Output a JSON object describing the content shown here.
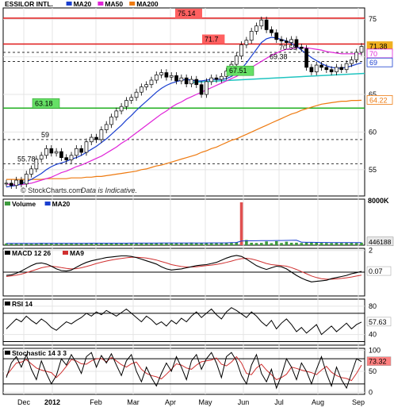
{
  "chart_data": {
    "type": "line",
    "title": "ESSILOR INTL.",
    "watermark": "© StockCharts.com",
    "disclaimer": "Data is Indicative.",
    "x_ticks": [
      "Dec",
      "2012",
      "Feb",
      "Mar",
      "Apr",
      "May",
      "Jun",
      "Jul",
      "Aug",
      "Sep"
    ],
    "colors": {
      "price": "#000000",
      "ma20": "#1a3fd0",
      "ma50": "#e024d8",
      "ma200": "#ee7a10",
      "green_level": "#22b022",
      "teal_trend": "#20c4c0",
      "resistance": "#e01818",
      "volume": "#3c9a3c",
      "macd_signal": "#d03030",
      "red_label": "#ff6060",
      "green_label": "#66e066"
    },
    "panels": [
      {
        "name": "price",
        "ylim": [
          51.5,
          76.5
        ],
        "y_ticks": [
          55,
          60,
          65,
          70,
          75
        ],
        "legend": [
          {
            "label": "ESSILOR INTL.",
            "color": "#000000"
          },
          {
            "label": "MA20",
            "color": "#1a3fd0"
          },
          {
            "label": "MA50",
            "color": "#e024d8"
          },
          {
            "label": "MA200",
            "color": "#ee7a10"
          }
        ],
        "levels": [
          {
            "value": 75.14,
            "label": "75.14",
            "style": "red"
          },
          {
            "value": 71.7,
            "label": "71.7",
            "style": "red"
          },
          {
            "value": 70.59,
            "label": "70.59",
            "style": "dashed"
          },
          {
            "value": 69.38,
            "label": "69.38",
            "style": "dashed"
          },
          {
            "value": 67.51,
            "label": "67.51",
            "style": "green_label"
          },
          {
            "value": 63.18,
            "label": "63.18",
            "style": "green"
          },
          {
            "value": 59,
            "label": "59",
            "style": "dashed"
          },
          {
            "value": 55.78,
            "label": "55.78",
            "style": "dashed"
          }
        ],
        "last_values": [
          {
            "label": "71.38",
            "value": 71.38,
            "color": "#f0b020"
          },
          {
            "label": "70",
            "value": 70.4,
            "color": "#e024d8"
          },
          {
            "label": "69",
            "value": 69.2,
            "color": "#1a3fd0"
          },
          {
            "label": "64.22",
            "value": 64.22,
            "color": "#ee7a10"
          }
        ],
        "price": [
          53.2,
          52.9,
          53.6,
          53.1,
          54.4,
          55.1,
          56.4,
          56.9,
          57.8,
          57.2,
          57.4,
          56.6,
          56.3,
          56.9,
          57.8,
          57.3,
          58.7,
          59.3,
          59.0,
          60.3,
          61.0,
          62.0,
          62.8,
          63.4,
          64.2,
          64.6,
          65.3,
          66.0,
          66.3,
          66.9,
          67.6,
          67.9,
          67.3,
          67.5,
          66.8,
          67.2,
          66.4,
          67.0,
          66.3,
          65.0,
          66.7,
          67.2,
          67.0,
          67.4,
          68.1,
          69.0,
          70.1,
          71.6,
          72.2,
          73.4,
          74.1,
          74.9,
          73.6,
          73.2,
          72.3,
          72.1,
          71.9,
          72.3,
          71.3,
          71.1,
          68.6,
          68.0,
          68.9,
          68.6,
          68.3,
          68.0,
          68.6,
          68.3,
          69.1,
          69.6,
          70.6,
          71.38
        ],
        "ma20": [
          52.7,
          52.8,
          52.9,
          53.1,
          53.4,
          53.7,
          54.1,
          54.5,
          55.0,
          55.4,
          55.7,
          55.9,
          56.1,
          56.4,
          56.6,
          56.9,
          57.3,
          57.7,
          58.1,
          58.6,
          59.1,
          59.7,
          60.3,
          60.9,
          61.6,
          62.2,
          62.9,
          63.5,
          64.1,
          64.7,
          65.3,
          65.8,
          66.2,
          66.5,
          66.7,
          66.9,
          67.0,
          66.9,
          66.8,
          66.8,
          66.9,
          67.0,
          67.0,
          67.0,
          67.1,
          67.4,
          67.8,
          68.4,
          69.2,
          70.1,
          71.0,
          71.9,
          72.4,
          72.6,
          72.5,
          72.3,
          72.1,
          71.8,
          71.4,
          70.9,
          70.4,
          69.9,
          69.5,
          69.1,
          68.8,
          68.6,
          68.5,
          68.5,
          68.6,
          68.8,
          69.0,
          69.2
        ],
        "ma50": [
          53.1,
          53.0,
          53.0,
          53.0,
          53.1,
          53.2,
          53.4,
          53.6,
          53.8,
          54.0,
          54.3,
          54.6,
          54.8,
          55.1,
          55.4,
          55.6,
          55.9,
          56.2,
          56.5,
          56.8,
          57.2,
          57.6,
          58.0,
          58.5,
          58.9,
          59.4,
          59.9,
          60.4,
          60.9,
          61.4,
          61.9,
          62.4,
          62.8,
          63.3,
          63.7,
          64.0,
          64.4,
          64.7,
          65.0,
          65.3,
          65.6,
          65.9,
          66.2,
          66.5,
          66.8,
          67.1,
          67.4,
          67.8,
          68.2,
          68.6,
          69.0,
          69.4,
          69.8,
          70.2,
          70.5,
          70.8,
          71.0,
          71.1,
          71.2,
          71.2,
          71.2,
          71.1,
          71.0,
          70.9,
          70.7,
          70.6,
          70.5,
          70.4,
          70.4,
          70.4,
          70.4,
          70.4
        ],
        "ma200": [
          53.7,
          53.7,
          53.7,
          53.7,
          53.7,
          53.7,
          53.7,
          53.7,
          53.8,
          53.8,
          53.8,
          53.8,
          53.8,
          53.9,
          53.9,
          53.9,
          54.0,
          54.0,
          54.1,
          54.1,
          54.2,
          54.3,
          54.4,
          54.5,
          54.6,
          54.7,
          54.8,
          55.0,
          55.1,
          55.3,
          55.5,
          55.6,
          55.8,
          56.0,
          56.2,
          56.4,
          56.6,
          56.8,
          57.0,
          57.3,
          57.5,
          57.8,
          58.0,
          58.3,
          58.6,
          58.9,
          59.1,
          59.4,
          59.7,
          60.0,
          60.3,
          60.6,
          60.9,
          61.2,
          61.5,
          61.8,
          62.1,
          62.4,
          62.6,
          62.9,
          63.1,
          63.3,
          63.5,
          63.7,
          63.8,
          63.9,
          64.0,
          64.1,
          64.1,
          64.2,
          64.2,
          64.22
        ]
      },
      {
        "name": "volume",
        "ylim": [
          0,
          8000
        ],
        "y_ticks": [],
        "y_tick_labels": [
          {
            "label": "8000K",
            "value": 8000
          }
        ],
        "legend": [
          {
            "label": "Volume",
            "color": "#3c9a3c"
          },
          {
            "label": "MA20",
            "color": "#1a3fd0"
          }
        ],
        "last_values": [
          {
            "label": "446188",
            "value": 446,
            "color": "#e8e8e8"
          }
        ],
        "values": [
          310,
          290,
          330,
          280,
          350,
          320,
          300,
          410,
          360,
          340,
          300,
          290,
          330,
          360,
          310,
          340,
          380,
          300,
          320,
          370,
          350,
          330,
          360,
          340,
          390,
          360,
          400,
          380,
          350,
          370,
          420,
          390,
          360,
          340,
          410,
          380,
          350,
          450,
          400,
          370,
          430,
          380,
          400,
          360,
          440,
          470,
          510,
          7450,
          900,
          420,
          380,
          390,
          650,
          350,
          700,
          380,
          600,
          420,
          430,
          380,
          460,
          520,
          440,
          400,
          380,
          370,
          430,
          390,
          400,
          410,
          380,
          446
        ],
        "ma20": [
          320,
          320,
          320,
          320,
          320,
          320,
          320,
          325,
          325,
          330,
          330,
          330,
          330,
          330,
          335,
          335,
          335,
          340,
          340,
          340,
          345,
          345,
          345,
          350,
          350,
          355,
          355,
          360,
          360,
          365,
          365,
          370,
          370,
          375,
          375,
          380,
          380,
          385,
          385,
          390,
          390,
          395,
          395,
          400,
          400,
          440,
          470,
          720,
          760,
          760,
          770,
          780,
          800,
          800,
          820,
          820,
          830,
          840,
          860,
          520,
          500,
          490,
          480,
          470,
          470,
          460,
          455,
          450,
          450,
          448,
          447,
          446
        ]
      },
      {
        "name": "macd",
        "ylim": [
          -2.2,
          2.2
        ],
        "y_ticks": [
          2,
          0
        ],
        "zero": 0,
        "legend": [
          {
            "label": "MACD 12 26",
            "color": "#000000"
          },
          {
            "label": "MA9",
            "color": "#d03030"
          }
        ],
        "last_values": [
          {
            "label": "0.07",
            "value": 0.07,
            "color": "#ffffff"
          }
        ],
        "macd": [
          -0.3,
          -0.25,
          -0.1,
          0.1,
          0.35,
          0.6,
          0.8,
          0.85,
          0.75,
          0.55,
          0.3,
          0.15,
          0.1,
          0.2,
          0.45,
          0.7,
          0.9,
          1.05,
          1.15,
          1.25,
          1.35,
          1.4,
          1.45,
          1.5,
          1.5,
          1.45,
          1.35,
          1.2,
          1.05,
          0.9,
          0.75,
          0.5,
          0.3,
          0.2,
          0.25,
          0.3,
          0.4,
          0.5,
          0.6,
          0.65,
          0.7,
          0.8,
          0.9,
          1.1,
          1.3,
          1.45,
          1.55,
          1.45,
          1.2,
          0.9,
          0.6,
          0.4,
          0.25,
          0.4,
          0.55,
          0.5,
          0.3,
          0.0,
          -0.3,
          -0.55,
          -0.75,
          -0.9,
          -0.85,
          -0.8,
          -0.75,
          -0.6,
          -0.5,
          -0.4,
          -0.3,
          -0.15,
          -0.05,
          0.07
        ],
        "signal": [
          -0.4,
          -0.35,
          -0.28,
          -0.18,
          -0.05,
          0.1,
          0.25,
          0.4,
          0.5,
          0.55,
          0.5,
          0.42,
          0.35,
          0.3,
          0.32,
          0.4,
          0.52,
          0.65,
          0.8,
          0.92,
          1.03,
          1.12,
          1.2,
          1.27,
          1.33,
          1.37,
          1.38,
          1.35,
          1.3,
          1.22,
          1.12,
          0.98,
          0.85,
          0.7,
          0.6,
          0.52,
          0.48,
          0.48,
          0.5,
          0.55,
          0.6,
          0.65,
          0.72,
          0.8,
          0.9,
          1.02,
          1.15,
          1.25,
          1.28,
          1.22,
          1.1,
          0.95,
          0.8,
          0.7,
          0.65,
          0.6,
          0.55,
          0.42,
          0.25,
          0.05,
          -0.15,
          -0.35,
          -0.5,
          -0.6,
          -0.65,
          -0.65,
          -0.62,
          -0.58,
          -0.52,
          -0.45,
          -0.36,
          -0.27
        ]
      },
      {
        "name": "rsi",
        "ylim": [
          25,
          90
        ],
        "y_ticks": [
          80,
          40
        ],
        "guides": [
          70,
          30
        ],
        "legend": [
          {
            "label": "RSI 14",
            "color": "#000000"
          }
        ],
        "last_values": [
          {
            "label": "57.63",
            "value": 57.63,
            "color": "#ffffff"
          }
        ],
        "values": [
          48,
          55,
          62,
          58,
          66,
          60,
          55,
          62,
          57,
          50,
          46,
          52,
          58,
          55,
          60,
          64,
          70,
          66,
          72,
          68,
          74,
          70,
          66,
          71,
          76,
          70,
          64,
          58,
          66,
          61,
          54,
          58,
          52,
          60,
          55,
          63,
          58,
          66,
          72,
          64,
          70,
          76,
          68,
          62,
          72,
          78,
          74,
          69,
          64,
          72,
          66,
          58,
          52,
          60,
          48,
          56,
          62,
          54,
          44,
          50,
          42,
          48,
          54,
          40,
          46,
          52,
          44,
          50,
          56,
          48,
          54,
          57.63
        ]
      },
      {
        "name": "stochastic",
        "ylim": [
          -5,
          105
        ],
        "y_ticks": [
          100,
          50,
          0
        ],
        "guides": [
          80,
          20
        ],
        "legend": [
          {
            "label": "Stochastic 14 3 3",
            "color": "#000000"
          }
        ],
        "last_values": [
          {
            "label": "73.32",
            "value": 73.32,
            "color": "#ff8080"
          }
        ],
        "k": [
          35,
          70,
          85,
          60,
          90,
          55,
          30,
          75,
          45,
          20,
          40,
          80,
          65,
          90,
          70,
          45,
          85,
          95,
          60,
          88,
          70,
          92,
          65,
          40,
          75,
          90,
          50,
          25,
          60,
          35,
          15,
          45,
          70,
          50,
          85,
          60,
          30,
          75,
          90,
          55,
          80,
          95,
          70,
          35,
          85,
          95,
          75,
          40,
          20,
          65,
          90,
          45,
          25,
          55,
          10,
          40,
          80,
          60,
          30,
          70,
          50,
          20,
          55,
          85,
          45,
          15,
          60,
          30,
          10,
          45,
          80,
          73.32
        ],
        "d": [
          40,
          55,
          70,
          72,
          78,
          68,
          58,
          53,
          50,
          47,
          35,
          47,
          62,
          78,
          75,
          68,
          67,
          75,
          80,
          81,
          73,
          83,
          75,
          66,
          60,
          68,
          72,
          55,
          45,
          40,
          37,
          32,
          43,
          55,
          68,
          65,
          58,
          55,
          65,
          73,
          75,
          77,
          82,
          67,
          63,
          72,
          85,
          70,
          45,
          42,
          58,
          67,
          53,
          42,
          30,
          35,
          43,
          60,
          57,
          53,
          50,
          47,
          42,
          53,
          62,
          48,
          40,
          35,
          33,
          28,
          45,
          65
        ]
      }
    ]
  }
}
